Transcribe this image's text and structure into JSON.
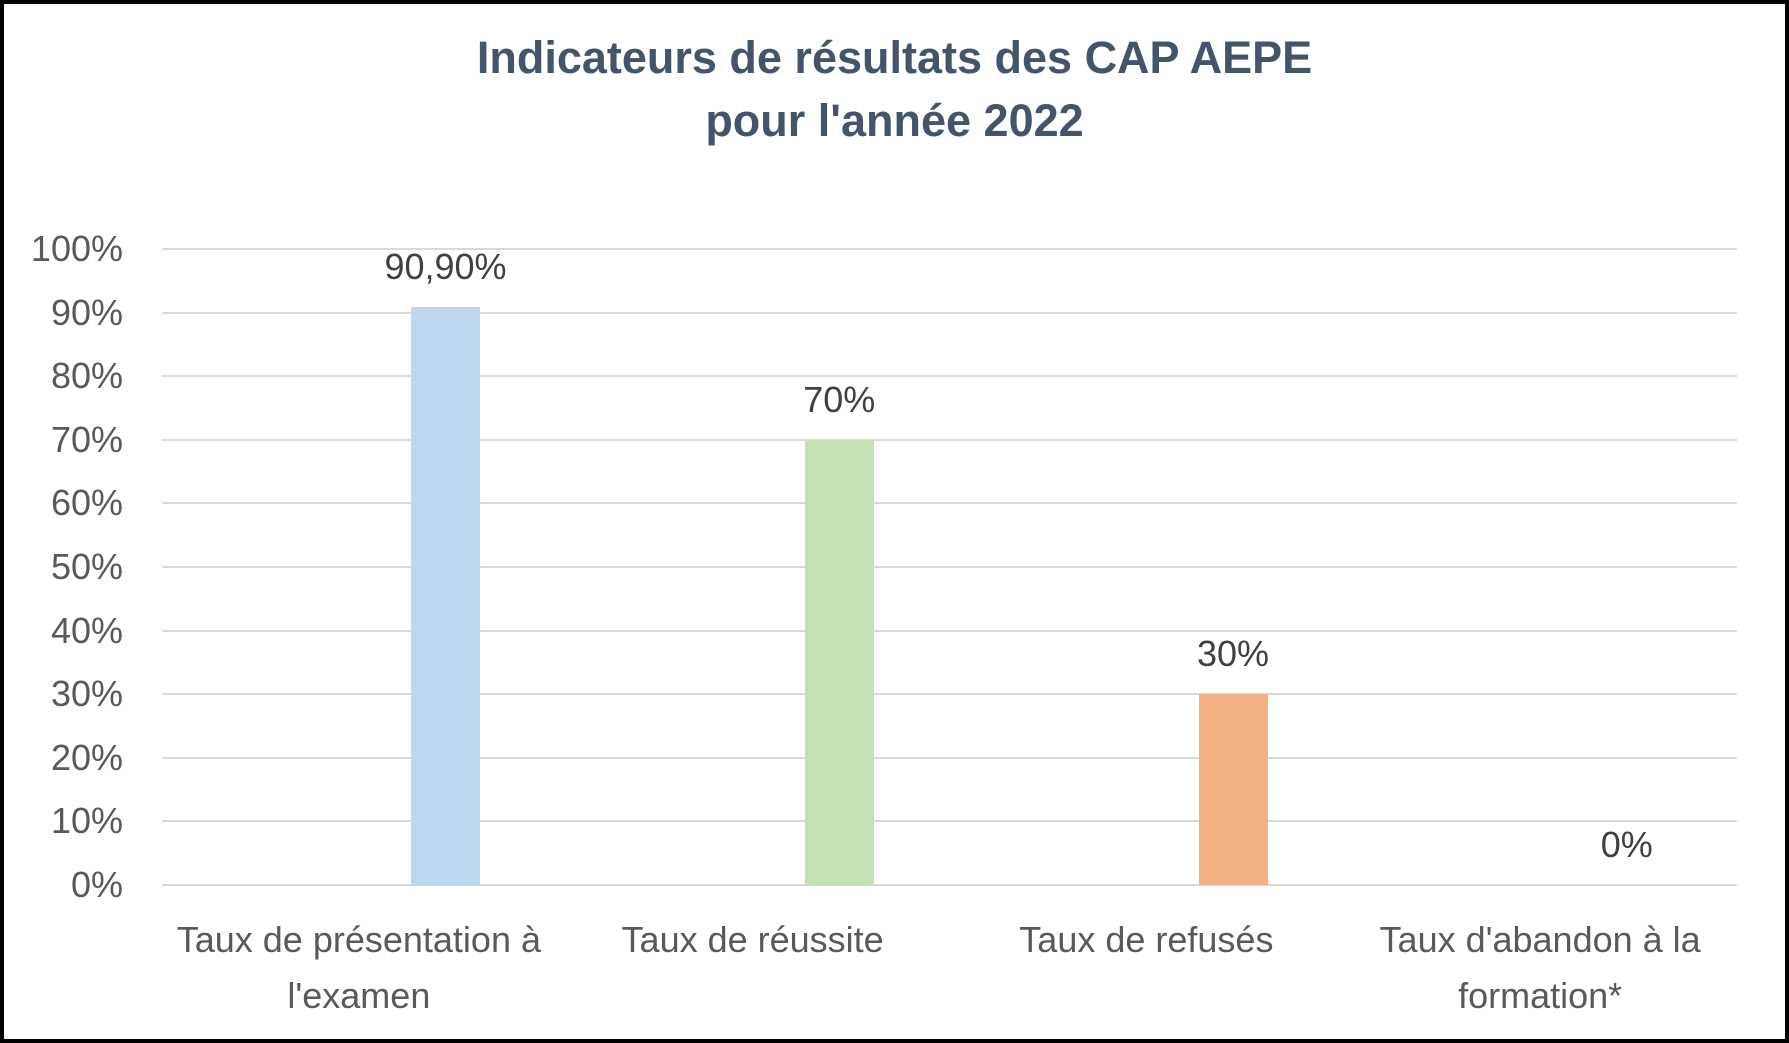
{
  "chart_data": {
    "type": "bar",
    "title": "Indicateurs de résultats des CAP AEPE pour l'année 2022",
    "title_lines": [
      "Indicateurs de résultats des CAP AEPE",
      "pour l'année 2022"
    ],
    "categories": [
      "Taux de présentation à\nl'examen",
      "Taux de réussite",
      "Taux de refusés",
      "Taux d'abandon à la\nformation*"
    ],
    "values": [
      90.9,
      70,
      30,
      0
    ],
    "data_labels": [
      "90,90%",
      "70%",
      "30%",
      "0%"
    ],
    "bar_colors": [
      "#BDD7EE",
      "#C5E0B4",
      "#F4B183",
      null
    ],
    "y_ticks": [
      "100%",
      "90%",
      "80%",
      "70%",
      "60%",
      "50%",
      "40%",
      "30%",
      "20%",
      "10%",
      "0%"
    ],
    "ylim": [
      0,
      100
    ],
    "xlabel": "",
    "ylabel": "",
    "grid": true,
    "legend": "none"
  },
  "colors": {
    "title_text": "#44546A",
    "axis_text": "#595959",
    "data_label_text": "#404040",
    "gridline": "#D9D9D9",
    "background": "#FFFFFF",
    "outer_border": "#000000"
  }
}
